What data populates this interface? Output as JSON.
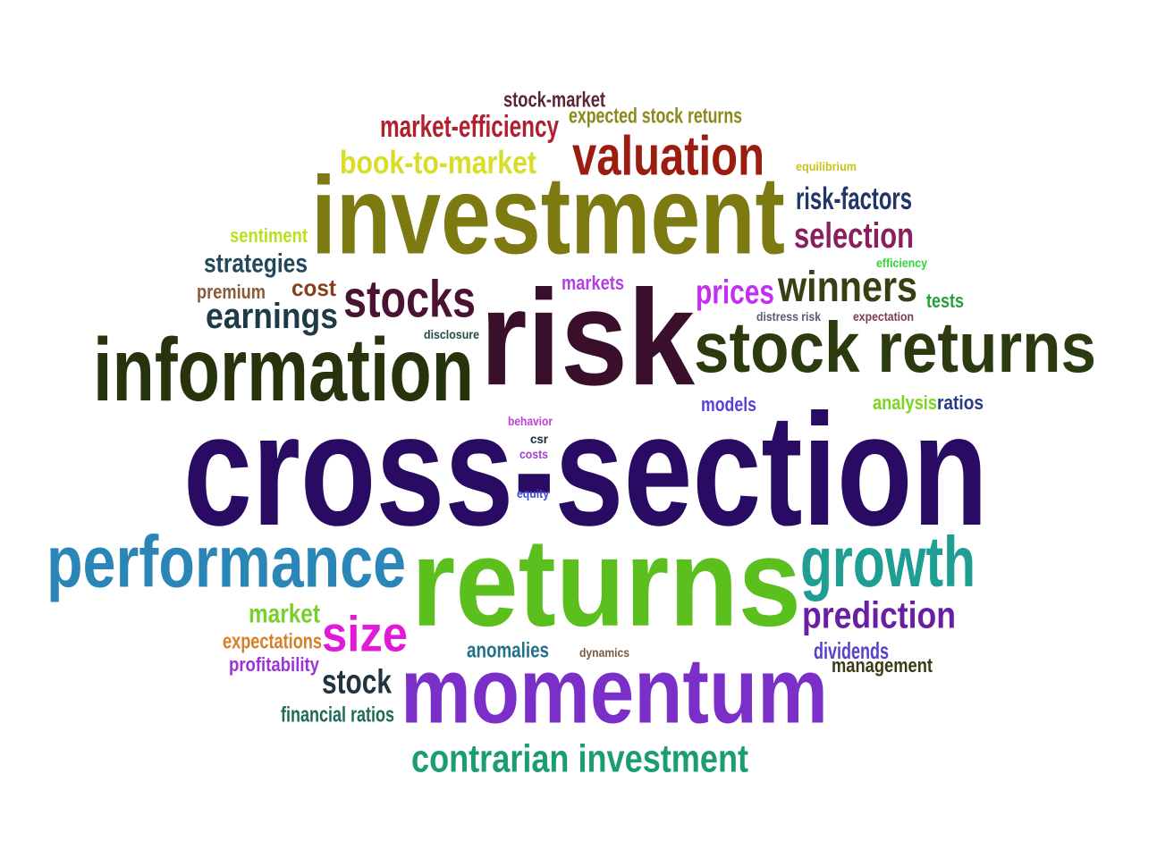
{
  "words": [
    {
      "id": "cross-section",
      "text": "cross-section",
      "color": "#2a0b63"
    },
    {
      "id": "returns",
      "text": "returns",
      "color": "#5bbf1e"
    },
    {
      "id": "risk",
      "text": "risk",
      "color": "#3a0f2b"
    },
    {
      "id": "investment",
      "text": "investment",
      "color": "#7d7a12"
    },
    {
      "id": "information",
      "text": "information",
      "color": "#26330d"
    },
    {
      "id": "stock-returns",
      "text": "stock returns",
      "color": "#2c3a10"
    },
    {
      "id": "momentum",
      "text": "momentum",
      "color": "#7b2fc8"
    },
    {
      "id": "performance",
      "text": "performance",
      "color": "#2b86b8"
    },
    {
      "id": "growth",
      "text": "growth",
      "color": "#1f9e93"
    },
    {
      "id": "valuation",
      "text": "valuation",
      "color": "#9b1d12"
    },
    {
      "id": "stocks",
      "text": "stocks",
      "color": "#4a1233"
    },
    {
      "id": "winners",
      "text": "winners",
      "color": "#3a3f13"
    },
    {
      "id": "earnings",
      "text": "earnings",
      "color": "#1d3a46"
    },
    {
      "id": "contrarian-investment",
      "text": "contrarian investment",
      "color": "#1a9e6f"
    },
    {
      "id": "prediction",
      "text": "prediction",
      "color": "#6a1fa3"
    },
    {
      "id": "size",
      "text": "size",
      "color": "#e01ad6"
    },
    {
      "id": "book-to-market",
      "text": "book-to-market",
      "color": "#d8dd27"
    },
    {
      "id": "selection",
      "text": "selection",
      "color": "#8a1f5e"
    },
    {
      "id": "prices",
      "text": "prices",
      "color": "#c32ff0"
    },
    {
      "id": "market-efficiency",
      "text": "market-efficiency",
      "color": "#b0202e"
    },
    {
      "id": "risk-factors",
      "text": "risk-factors",
      "color": "#213566"
    },
    {
      "id": "stock",
      "text": "stock",
      "color": "#21343f"
    },
    {
      "id": "strategies",
      "text": "strategies",
      "color": "#23485c"
    },
    {
      "id": "cost",
      "text": "cost",
      "color": "#8a3d1c"
    },
    {
      "id": "stock-market",
      "text": "stock-market",
      "color": "#5a2536"
    },
    {
      "id": "expected-stock-returns",
      "text": "expected stock returns",
      "color": "#8a8a1b"
    },
    {
      "id": "market",
      "text": "market",
      "color": "#7bcf2d"
    },
    {
      "id": "expectations",
      "text": "expectations",
      "color": "#d77f2a"
    },
    {
      "id": "anomalies",
      "text": "anomalies",
      "color": "#23708a"
    },
    {
      "id": "dividends",
      "text": "dividends",
      "color": "#5a3fc8"
    },
    {
      "id": "management",
      "text": "management",
      "color": "#3a3a18"
    },
    {
      "id": "profitability",
      "text": "profitability",
      "color": "#9b34d6"
    },
    {
      "id": "financial-ratios",
      "text": "financial ratios",
      "color": "#1f6a5a"
    },
    {
      "id": "premium",
      "text": "premium",
      "color": "#8a5a3a"
    },
    {
      "id": "sentiment",
      "text": "sentiment",
      "color": "#b8e21a"
    },
    {
      "id": "markets",
      "text": "markets",
      "color": "#b23fe6"
    },
    {
      "id": "tests",
      "text": "tests",
      "color": "#22a13a"
    },
    {
      "id": "analysis",
      "text": "analysis",
      "color": "#7ed321"
    },
    {
      "id": "ratios",
      "text": "ratios",
      "color": "#263a88"
    },
    {
      "id": "models",
      "text": "models",
      "color": "#5b3fd6"
    },
    {
      "id": "efficiency",
      "text": "efficiency",
      "color": "#2fd63a"
    },
    {
      "id": "equilibrium",
      "text": "equilibrium",
      "color": "#c8c21a"
    },
    {
      "id": "distress-risk",
      "text": "distress risk",
      "color": "#5a5a70"
    },
    {
      "id": "expectation",
      "text": "expectation",
      "color": "#7a3a4a"
    },
    {
      "id": "disclosure",
      "text": "disclosure",
      "color": "#2a4a4a"
    },
    {
      "id": "behavior",
      "text": "behavior",
      "color": "#c03fd6"
    },
    {
      "id": "csr",
      "text": "csr",
      "color": "#1a2a3a"
    },
    {
      "id": "costs",
      "text": "costs",
      "color": "#a03fd0"
    },
    {
      "id": "equity",
      "text": "equity",
      "color": "#3f4ad6"
    },
    {
      "id": "dynamics",
      "text": "dynamics",
      "color": "#7a5a3a"
    }
  ]
}
